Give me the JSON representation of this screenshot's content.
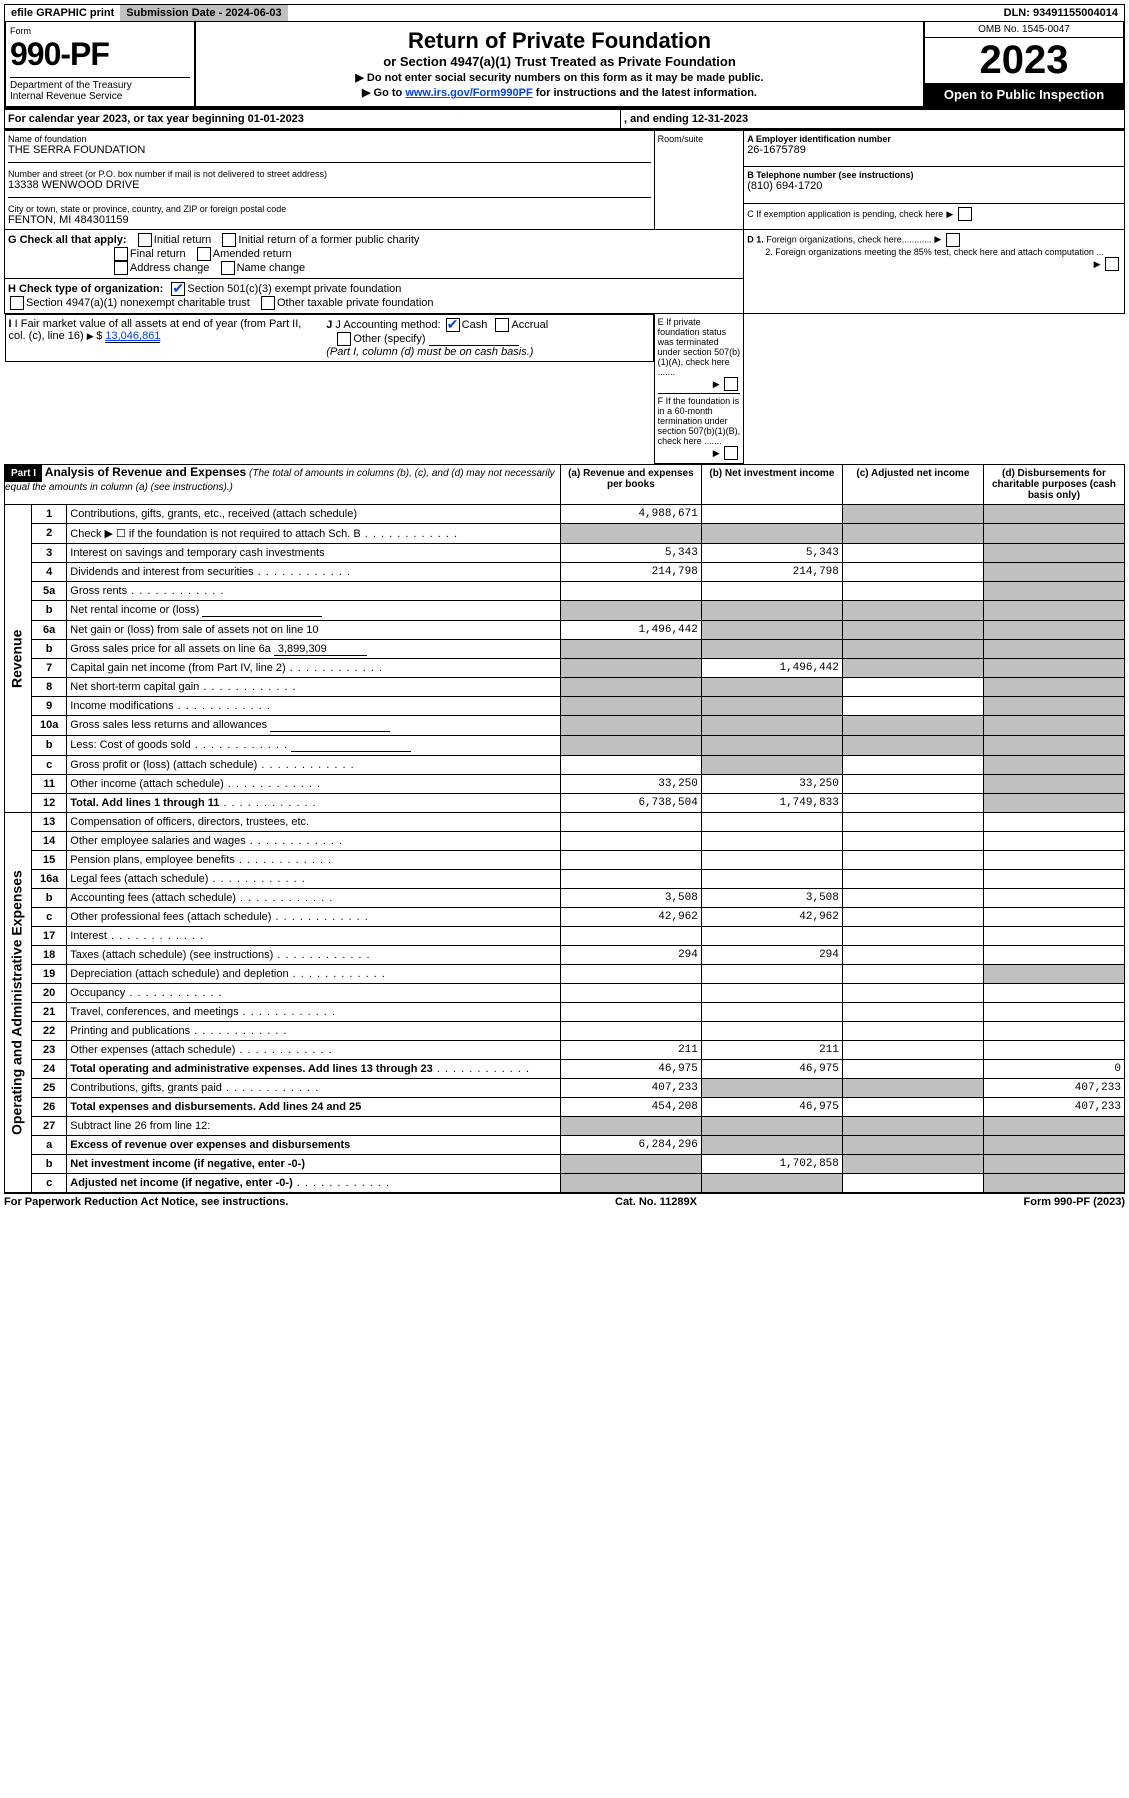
{
  "topbar": {
    "efile": "efile GRAPHIC print",
    "subdate_label": "Submission Date - 2024-06-03",
    "dln": "DLN: 93491155004014"
  },
  "header": {
    "form_label": "Form",
    "form_num": "990-PF",
    "dept": "Department of the Treasury\nInternal Revenue Service",
    "title": "Return of Private Foundation",
    "subtitle": "or Section 4947(a)(1) Trust Treated as Private Foundation",
    "instr1": "▶ Do not enter social security numbers on this form as it may be made public.",
    "instr2": "▶ Go to www.irs.gov/Form990PF for instructions and the latest information.",
    "omb": "OMB No. 1545-0047",
    "year": "2023",
    "open": "Open to Public Inspection"
  },
  "cy": {
    "text": "For calendar year 2023, or tax year beginning 01-01-2023",
    "ending": ", and ending 12-31-2023"
  },
  "id": {
    "name_label": "Name of foundation",
    "name": "THE SERRA FOUNDATION",
    "addr_label": "Number and street (or P.O. box number if mail is not delivered to street address)",
    "addr": "13338 WENWOOD DRIVE",
    "room_label": "Room/suite",
    "city_label": "City or town, state or province, country, and ZIP or foreign postal code",
    "city": "FENTON, MI  484301159",
    "ein_label": "A Employer identification number",
    "ein": "26-1675789",
    "tel_label": "B Telephone number (see instructions)",
    "tel": "(810) 694-1720",
    "c_label": "C If exemption application is pending, check here",
    "d1": "D 1. Foreign organizations, check here............",
    "d2": "2. Foreign organizations meeting the 85% test, check here and attach computation ...",
    "e": "E If private foundation status was terminated under section 507(b)(1)(A), check here .......",
    "f": "F If the foundation is in a 60-month termination under section 507(b)(1)(B), check here .......",
    "g_label": "G Check all that apply:",
    "g_opts": [
      "Initial return",
      "Initial return of a former public charity",
      "Final return",
      "Amended return",
      "Address change",
      "Name change"
    ],
    "h_label": "H Check type of organization:",
    "h1": "Section 501(c)(3) exempt private foundation",
    "h2": "Section 4947(a)(1) nonexempt charitable trust",
    "h3": "Other taxable private foundation",
    "i_label": "I Fair market value of all assets at end of year (from Part II, col. (c), line 16)",
    "i_val": "13,046,861",
    "j_label": "J Accounting method:",
    "j_cash": "Cash",
    "j_acc": "Accrual",
    "j_other": "Other (specify)",
    "j_note": "(Part I, column (d) must be on cash basis.)"
  },
  "part1": {
    "tag": "Part I",
    "title": "Analysis of Revenue and Expenses",
    "note": "(The total of amounts in columns (b), (c), and (d) may not necessarily equal the amounts in column (a) (see instructions).)",
    "cols": {
      "a": "(a) Revenue and expenses per books",
      "b": "(b) Net investment income",
      "c": "(c) Adjusted net income",
      "d": "(d) Disbursements for charitable purposes (cash basis only)"
    }
  },
  "sections": {
    "rev": "Revenue",
    "exp": "Operating and Administrative Expenses"
  },
  "rows": [
    {
      "n": "1",
      "label": "Contributions, gifts, grants, etc., received (attach schedule)",
      "a": "4,988,671",
      "b": "",
      "c": "shade",
      "d": "shade"
    },
    {
      "n": "2",
      "label": "Check ▶ ☐ if the foundation is not required to attach Sch. B",
      "dots": true,
      "a": "shade",
      "b": "shade",
      "c": "shade",
      "d": "shade"
    },
    {
      "n": "3",
      "label": "Interest on savings and temporary cash investments",
      "a": "5,343",
      "b": "5,343",
      "c": "",
      "d": "shade"
    },
    {
      "n": "4",
      "label": "Dividends and interest from securities",
      "dots": true,
      "a": "214,798",
      "b": "214,798",
      "c": "",
      "d": "shade"
    },
    {
      "n": "5a",
      "label": "Gross rents",
      "dots": true,
      "a": "",
      "b": "",
      "c": "",
      "d": "shade"
    },
    {
      "n": "b",
      "label": "Net rental income or (loss)",
      "inline_input": true,
      "a": "shade",
      "b": "shade",
      "c": "shade",
      "d": "shade"
    },
    {
      "n": "6a",
      "label": "Net gain or (loss) from sale of assets not on line 10",
      "a": "1,496,442",
      "b": "shade",
      "c": "shade",
      "d": "shade"
    },
    {
      "n": "b",
      "label": "Gross sales price for all assets on line 6a",
      "inline_val": "3,899,309",
      "a": "shade",
      "b": "shade",
      "c": "shade",
      "d": "shade"
    },
    {
      "n": "7",
      "label": "Capital gain net income (from Part IV, line 2)",
      "dots": true,
      "a": "shade",
      "b": "1,496,442",
      "c": "shade",
      "d": "shade"
    },
    {
      "n": "8",
      "label": "Net short-term capital gain",
      "dots": true,
      "a": "shade",
      "b": "shade",
      "c": "",
      "d": "shade"
    },
    {
      "n": "9",
      "label": "Income modifications",
      "dots": true,
      "a": "shade",
      "b": "shade",
      "c": "",
      "d": "shade"
    },
    {
      "n": "10a",
      "label": "Gross sales less returns and allowances",
      "inline_input": true,
      "a": "shade",
      "b": "shade",
      "c": "shade",
      "d": "shade"
    },
    {
      "n": "b",
      "label": "Less: Cost of goods sold",
      "dots": true,
      "inline_input": true,
      "a": "shade",
      "b": "shade",
      "c": "shade",
      "d": "shade"
    },
    {
      "n": "c",
      "label": "Gross profit or (loss) (attach schedule)",
      "dots": true,
      "a": "",
      "b": "shade",
      "c": "",
      "d": "shade"
    },
    {
      "n": "11",
      "label": "Other income (attach schedule)",
      "dots": true,
      "a": "33,250",
      "b": "33,250",
      "c": "",
      "d": "shade"
    },
    {
      "n": "12",
      "label": "Total. Add lines 1 through 11",
      "dots": true,
      "bold": true,
      "a": "6,738,504",
      "b": "1,749,833",
      "c": "",
      "d": "shade"
    },
    {
      "n": "13",
      "label": "Compensation of officers, directors, trustees, etc.",
      "a": "",
      "b": "",
      "c": "",
      "d": ""
    },
    {
      "n": "14",
      "label": "Other employee salaries and wages",
      "dots": true,
      "a": "",
      "b": "",
      "c": "",
      "d": ""
    },
    {
      "n": "15",
      "label": "Pension plans, employee benefits",
      "dots": true,
      "a": "",
      "b": "",
      "c": "",
      "d": ""
    },
    {
      "n": "16a",
      "label": "Legal fees (attach schedule)",
      "dots": true,
      "a": "",
      "b": "",
      "c": "",
      "d": ""
    },
    {
      "n": "b",
      "label": "Accounting fees (attach schedule)",
      "dots": true,
      "a": "3,508",
      "b": "3,508",
      "c": "",
      "d": ""
    },
    {
      "n": "c",
      "label": "Other professional fees (attach schedule)",
      "dots": true,
      "a": "42,962",
      "b": "42,962",
      "c": "",
      "d": ""
    },
    {
      "n": "17",
      "label": "Interest",
      "dots": true,
      "a": "",
      "b": "",
      "c": "",
      "d": ""
    },
    {
      "n": "18",
      "label": "Taxes (attach schedule) (see instructions)",
      "dots": true,
      "a": "294",
      "b": "294",
      "c": "",
      "d": ""
    },
    {
      "n": "19",
      "label": "Depreciation (attach schedule) and depletion",
      "dots": true,
      "a": "",
      "b": "",
      "c": "",
      "d": "shade"
    },
    {
      "n": "20",
      "label": "Occupancy",
      "dots": true,
      "a": "",
      "b": "",
      "c": "",
      "d": ""
    },
    {
      "n": "21",
      "label": "Travel, conferences, and meetings",
      "dots": true,
      "a": "",
      "b": "",
      "c": "",
      "d": ""
    },
    {
      "n": "22",
      "label": "Printing and publications",
      "dots": true,
      "a": "",
      "b": "",
      "c": "",
      "d": ""
    },
    {
      "n": "23",
      "label": "Other expenses (attach schedule)",
      "dots": true,
      "a": "211",
      "b": "211",
      "c": "",
      "d": ""
    },
    {
      "n": "24",
      "label": "Total operating and administrative expenses. Add lines 13 through 23",
      "dots": true,
      "bold": true,
      "a": "46,975",
      "b": "46,975",
      "c": "",
      "d": "0"
    },
    {
      "n": "25",
      "label": "Contributions, gifts, grants paid",
      "dots": true,
      "a": "407,233",
      "b": "shade",
      "c": "shade",
      "d": "407,233"
    },
    {
      "n": "26",
      "label": "Total expenses and disbursements. Add lines 24 and 25",
      "bold": true,
      "a": "454,208",
      "b": "46,975",
      "c": "",
      "d": "407,233"
    },
    {
      "n": "27",
      "label": "Subtract line 26 from line 12:",
      "a": "shade",
      "b": "shade",
      "c": "shade",
      "d": "shade"
    },
    {
      "n": "a",
      "label": "Excess of revenue over expenses and disbursements",
      "bold": true,
      "a": "6,284,296",
      "b": "shade",
      "c": "shade",
      "d": "shade"
    },
    {
      "n": "b",
      "label": "Net investment income (if negative, enter -0-)",
      "bold": true,
      "a": "shade",
      "b": "1,702,858",
      "c": "shade",
      "d": "shade"
    },
    {
      "n": "c",
      "label": "Adjusted net income (if negative, enter -0-)",
      "dots": true,
      "bold": true,
      "a": "shade",
      "b": "shade",
      "c": "",
      "d": "shade"
    }
  ],
  "footer": {
    "pra": "For Paperwork Reduction Act Notice, see instructions.",
    "cat": "Cat. No. 11289X",
    "form": "Form 990-PF (2023)"
  }
}
